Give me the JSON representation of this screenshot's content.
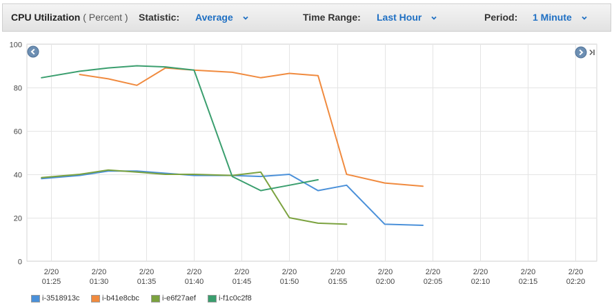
{
  "toolbar": {
    "metric_title": "CPU Utilization",
    "metric_unit": "( Percent )",
    "statistic_label": "Statistic:",
    "statistic_value": "Average",
    "time_range_label": "Time Range:",
    "time_range_value": "Last Hour",
    "period_label": "Period:",
    "period_value": "1 Minute"
  },
  "colors": {
    "link": "#1e6fc3",
    "grid": "#e4e4e4",
    "nav_button": "#6d8fb3"
  },
  "icons": {
    "prev": "chevron-left-circle-icon",
    "next": "chevron-right-circle-icon",
    "last": "skip-to-end-icon",
    "dropdown": "chevron-down-icon"
  },
  "chart_data": {
    "type": "line",
    "ylim": [
      0,
      100
    ],
    "yticks": [
      0,
      20,
      40,
      60,
      80,
      100
    ],
    "x": [
      "01:24",
      "01:28",
      "01:31",
      "01:34",
      "01:37",
      "01:40",
      "01:44",
      "01:47",
      "01:50",
      "01:53",
      "01:56",
      "02:00",
      "02:04",
      "02:08",
      "02:11",
      "02:16"
    ],
    "xticks": [
      {
        "date": "2/20",
        "time": "01:25"
      },
      {
        "date": "2/20",
        "time": "01:30"
      },
      {
        "date": "2/20",
        "time": "01:35"
      },
      {
        "date": "2/20",
        "time": "01:40"
      },
      {
        "date": "2/20",
        "time": "01:45"
      },
      {
        "date": "2/20",
        "time": "01:50"
      },
      {
        "date": "2/20",
        "time": "01:55"
      },
      {
        "date": "2/20",
        "time": "02:00"
      },
      {
        "date": "2/20",
        "time": "02:05"
      },
      {
        "date": "2/20",
        "time": "02:10"
      },
      {
        "date": "2/20",
        "time": "02:15"
      },
      {
        "date": "2/20",
        "time": "02:20"
      }
    ],
    "grid": true,
    "legend": "bottom",
    "series": [
      {
        "name": "i-3518913c",
        "color": "#4a90d9",
        "values": [
          38,
          39.5,
          41.5,
          41.5,
          null,
          39.5,
          39.5,
          39,
          40,
          32.5,
          35,
          17,
          16.5,
          null,
          null,
          null
        ]
      },
      {
        "name": "i-b41e8cbc",
        "color": "#f08a3e",
        "values": [
          null,
          86,
          84,
          81,
          89,
          88,
          87,
          84.5,
          86.5,
          85.5,
          40,
          36,
          34.5,
          null,
          null,
          null
        ]
      },
      {
        "name": "i-e6f27aef",
        "color": "#7ba23f",
        "values": [
          38.5,
          40,
          42,
          41,
          40,
          40,
          39.5,
          41,
          20,
          17.5,
          17,
          null,
          null,
          null,
          null,
          null
        ]
      },
      {
        "name": "i-f1c0c2f8",
        "color": "#3a9e6e",
        "values": [
          84.5,
          87.5,
          89,
          90,
          89.5,
          88,
          39,
          32.5,
          35,
          37.5,
          null,
          null,
          null,
          null,
          null,
          null
        ]
      }
    ]
  }
}
